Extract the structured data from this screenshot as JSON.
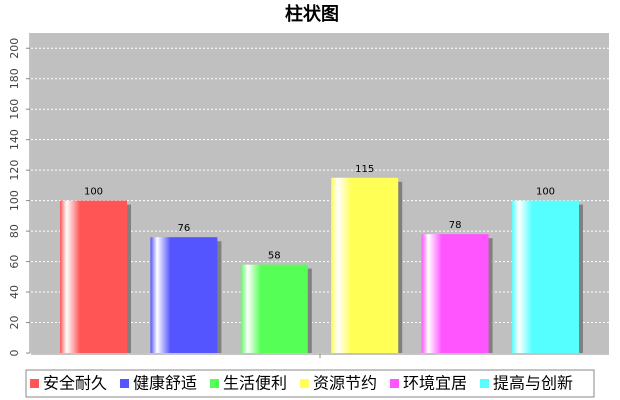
{
  "chart_data": {
    "type": "bar",
    "title": "柱状图",
    "categories": [
      "安全耐久",
      "健康舒适",
      "生活便利",
      "资源节约",
      "环境宜居",
      "提高与创新"
    ],
    "values": [
      100,
      76,
      58,
      115,
      78,
      100
    ],
    "colors": [
      "#ff5555",
      "#5555ff",
      "#55ff55",
      "#ffff55",
      "#ff55ff",
      "#55ffff"
    ],
    "ylim": [
      0,
      210
    ],
    "yticks": [
      0,
      20,
      40,
      60,
      80,
      100,
      120,
      140,
      160,
      180,
      200
    ],
    "grid": true,
    "legend": "bottom"
  }
}
